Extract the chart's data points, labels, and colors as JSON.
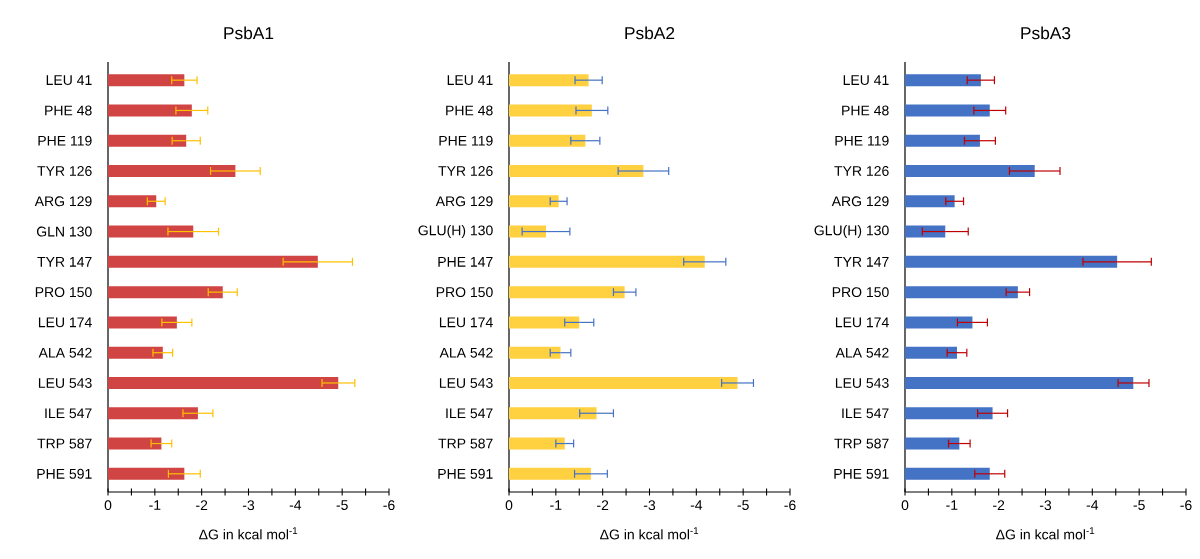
{
  "chart_data": [
    {
      "type": "bar",
      "orientation": "horizontal",
      "title": "PsbA1",
      "xlabel": "ΔG in kcal mol$^{-1}$",
      "categories": [
        "LEU  41",
        "PHE  48",
        "PHE 119",
        "TYR 126",
        "ARG 129",
        "GLN 130",
        "TYR 147",
        "PRO 150",
        "LEU 174",
        "ALA 542",
        "LEU 543",
        "ILE 547",
        "TRP 587",
        "PHE 591"
      ],
      "series": [
        {
          "color": "#d04444",
          "values": [
            -1.63,
            -1.79,
            -1.67,
            -2.72,
            -1.03,
            -1.82,
            -4.48,
            -2.45,
            -1.47,
            -1.17,
            -4.92,
            -1.92,
            -1.14,
            -1.63
          ],
          "errors": [
            0.27,
            0.34,
            0.3,
            0.53,
            0.19,
            0.54,
            0.74,
            0.31,
            0.32,
            0.21,
            0.35,
            0.32,
            0.22,
            0.34
          ]
        }
      ],
      "xlim": [
        0,
        -6
      ],
      "xticks": [
        0,
        -1,
        -2,
        -3,
        -4,
        -5,
        -6
      ]
    },
    {
      "type": "bar",
      "orientation": "horizontal",
      "title": "PsbA2",
      "xlabel": "ΔG in kcal mol$^{-1}$",
      "categories": [
        "LEU  41",
        "PHE  48",
        "PHE 119",
        "TYR 126",
        "ARG 129",
        "GLU(H) 130",
        "PHE 147",
        "PRO 150",
        "LEU 174",
        "ALA 542",
        "LEU 543",
        "ILE 547",
        "TRP 587",
        "PHE 591"
      ],
      "series": [
        {
          "color": "#ffd040",
          "values": [
            -1.7,
            -1.77,
            -1.63,
            -2.87,
            -1.06,
            -0.79,
            -4.18,
            -2.47,
            -1.5,
            -1.1,
            -4.88,
            -1.87,
            -1.19,
            -1.75
          ],
          "errors": [
            0.29,
            0.34,
            0.31,
            0.54,
            0.18,
            0.51,
            0.45,
            0.24,
            0.31,
            0.22,
            0.34,
            0.36,
            0.19,
            0.35
          ]
        }
      ],
      "xlim": [
        0,
        -6
      ],
      "xticks": [
        0,
        -1,
        -2,
        -3,
        -4,
        -5,
        -6
      ]
    },
    {
      "type": "bar",
      "orientation": "horizontal",
      "title": "PsbA3",
      "xlabel": "ΔG in kcal mol$^{-1}$",
      "categories": [
        "LEU  41",
        "PHE  48",
        "PHE 119",
        "TYR 126",
        "ARG 129",
        "GLU(H) 130",
        "TYR 147",
        "PRO 150",
        "LEU 174",
        "ALA 542",
        "LEU 543",
        "ILE 547",
        "TRP 587",
        "PHE 591"
      ],
      "series": [
        {
          "color": "#4472c4",
          "values": [
            -1.62,
            -1.81,
            -1.6,
            -2.77,
            -1.06,
            -0.86,
            -4.53,
            -2.41,
            -1.44,
            -1.11,
            -4.88,
            -1.87,
            -1.16,
            -1.81
          ],
          "errors": [
            0.29,
            0.34,
            0.33,
            0.54,
            0.19,
            0.49,
            0.73,
            0.25,
            0.32,
            0.21,
            0.33,
            0.32,
            0.23,
            0.32
          ]
        }
      ],
      "xlim": [
        0,
        -6
      ],
      "xticks": [
        0,
        -1,
        -2,
        -3,
        -4,
        -5,
        -6
      ]
    }
  ]
}
